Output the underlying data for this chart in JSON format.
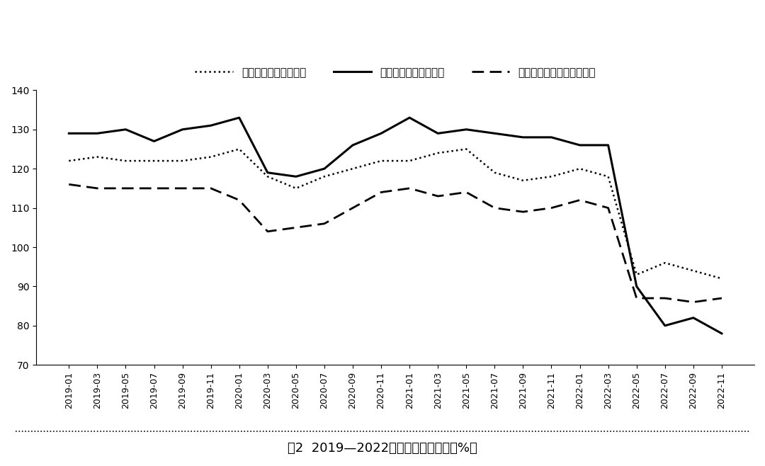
{
  "title": "图2  2019—2022年消费者信心指数（%）",
  "legend_labels": [
    "消费者信心指数：收入",
    "消费者信心指数：就业",
    "消费者信心指数：消费意愿"
  ],
  "x_labels": [
    "2019-01",
    "2019-03",
    "2019-05",
    "2019-07",
    "2019-09",
    "2019-11",
    "2020-01",
    "2020-03",
    "2020-05",
    "2020-07",
    "2020-09",
    "2020-11",
    "2021-01",
    "2021-03",
    "2021-05",
    "2021-07",
    "2021-09",
    "2021-11",
    "2022-01",
    "2022-03",
    "2022-05",
    "2022-07",
    "2022-09",
    "2022-11"
  ],
  "income": [
    122,
    123,
    122,
    122,
    122,
    123,
    125,
    118,
    115,
    118,
    120,
    122,
    122,
    124,
    125,
    119,
    117,
    118,
    120,
    118,
    93,
    96,
    94,
    92
  ],
  "employment": [
    129,
    129,
    130,
    127,
    130,
    131,
    133,
    119,
    118,
    120,
    126,
    129,
    133,
    129,
    130,
    129,
    128,
    128,
    126,
    126,
    90,
    80,
    82,
    78
  ],
  "consumption": [
    116,
    115,
    115,
    115,
    115,
    115,
    112,
    104,
    105,
    106,
    110,
    114,
    115,
    113,
    114,
    110,
    109,
    110,
    112,
    110,
    87,
    87,
    86,
    87
  ],
  "ylim": [
    70,
    140
  ],
  "yticks": [
    70,
    80,
    90,
    100,
    110,
    120,
    130,
    140
  ],
  "background_color": "#ffffff",
  "line_color": "#000000"
}
